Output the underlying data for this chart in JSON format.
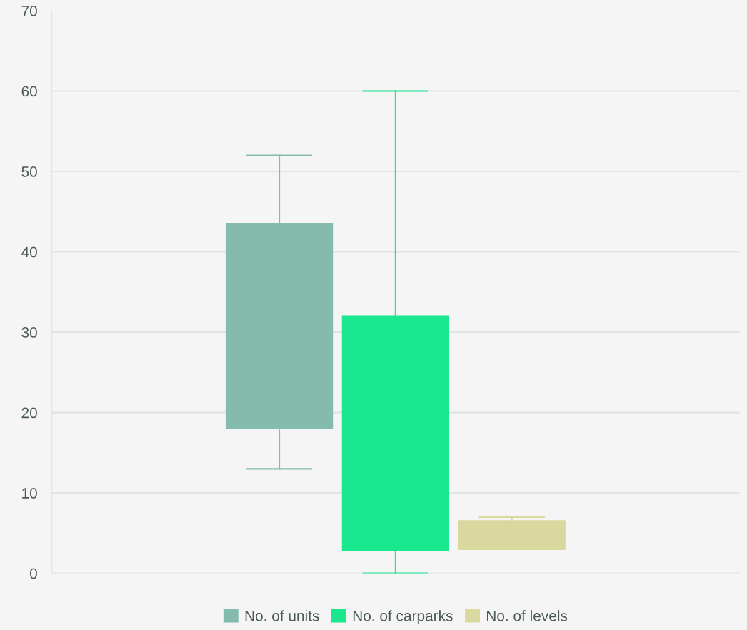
{
  "chart_data": {
    "type": "box",
    "categories": [
      null
    ],
    "series": [
      {
        "name": "No. of units",
        "color": "#84bbad",
        "boxes": [
          {
            "low": 13,
            "q1": 18,
            "q3": 43.6,
            "high": 52
          }
        ]
      },
      {
        "name": "No. of carparks",
        "color": "#19e88f",
        "boxes": [
          {
            "low": 0,
            "q1": 2.8,
            "q3": 32.1,
            "high": 60
          }
        ]
      },
      {
        "name": "No. of levels",
        "color": "#d9d89e",
        "boxes": [
          {
            "low": 2.9,
            "q1": 2.9,
            "q3": 6.6,
            "high": 7
          }
        ]
      }
    ],
    "ylim": [
      0,
      70
    ],
    "yticks": [
      0,
      10,
      20,
      30,
      40,
      50,
      60,
      70
    ],
    "grid": "y",
    "legend": "bottom"
  }
}
